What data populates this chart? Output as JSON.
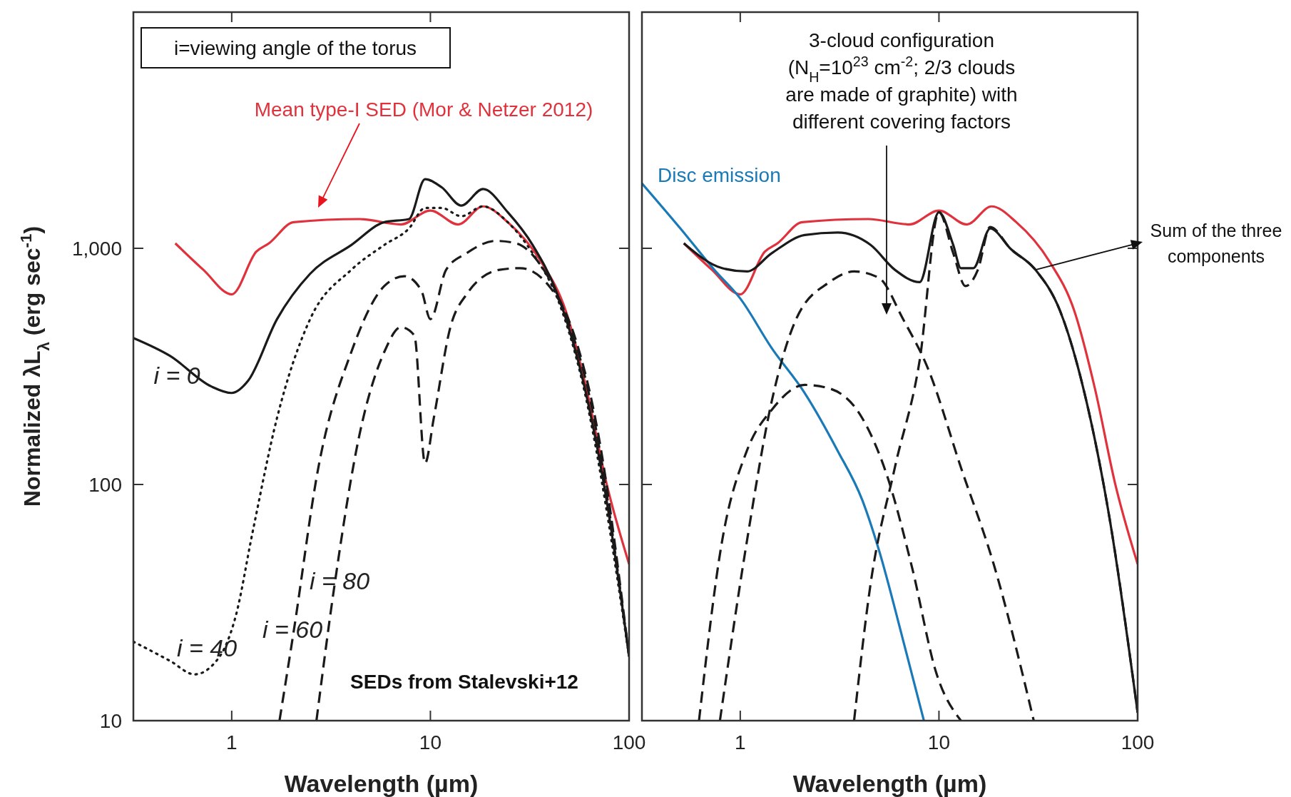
{
  "chart_data": [
    {
      "type": "line",
      "xlabel": "Wavelength (µm)",
      "ylabel": "Normalized λL$_{λ}$ (erg sec$^{-1}$)",
      "log": "xy",
      "xlim": [
        0.32,
        100
      ],
      "ylim": [
        10,
        10000
      ],
      "xticks": [
        1,
        10,
        100
      ],
      "yticks": [
        10,
        100,
        {
          "value": 1000,
          "label": "1,000"
        }
      ],
      "grid": false,
      "marker": "none",
      "annotations": [
        "i=viewing angle of the torus",
        "Mean type-I SED (Mor & Netzer 2012)",
        "i = 0",
        "i = 40",
        "i = 60",
        "i = 80",
        "SEDs from Stalevski+12"
      ],
      "series": [
        {
          "color": "#e0323c",
          "line_style": "solid",
          "x": [
            0.52,
            0.72,
            1,
            1.33,
            1.54,
            2.05,
            4.4,
            7.1,
            10,
            13.8,
            18.4,
            24.5,
            36,
            48,
            61,
            77,
            100
          ],
          "values": [
            1050,
            811,
            638,
            968,
            1050,
            1290,
            1330,
            1262,
            1445,
            1262,
            1505,
            1290,
            879,
            543,
            254,
            101,
            46
          ]
        },
        {
          "color": "#1a1a1a",
          "line_style": "solid",
          "x": [
            0.32,
            0.49,
            0.79,
            1,
            1.21,
            1.69,
            2.48,
            4.0,
            5.86,
            7.8,
            9.4,
            11.4,
            14.3,
            18.4,
            24.5,
            32.7,
            43.6,
            58,
            77,
            100
          ],
          "values": [
            417,
            350,
            260,
            244,
            275,
            501,
            780,
            1033,
            1290,
            1330,
            1963,
            1812,
            1517,
            1782,
            1422,
            1033,
            638,
            286,
            86,
            18.7
          ]
        },
        {
          "color": "#1a1a1a",
          "line_style": "dotted",
          "x": [
            0.32,
            0.49,
            0.65,
            0.87,
            1.05,
            1.27,
            1.69,
            2.48,
            4.0,
            5.86,
            7.8,
            9.4,
            11.4,
            14.3,
            18.4,
            24.5,
            32.7,
            43.6,
            58,
            100
          ],
          "values": [
            21.6,
            17.9,
            15.7,
            18.7,
            27.9,
            62,
            191,
            501,
            811,
            1033,
            1213,
            1482,
            1482,
            1367,
            1505,
            1290,
            953,
            613,
            275,
            18.7
          ]
        },
        {
          "color": "#1a1a1a",
          "line_style": "dashed",
          "x": [
            1.74,
            2.05,
            2.73,
            4.0,
            5.86,
            7.4,
            9.0,
            10,
            12.0,
            15.2,
            21.3,
            27,
            36,
            48,
            64,
            100
          ],
          "values": [
            10,
            23.8,
            118,
            364,
            692,
            762,
            663,
            501,
            811,
            953,
            1075,
            1050,
            845,
            522,
            225,
            18.7
          ]
        },
        {
          "color": "#1a1a1a",
          "line_style": "dashed",
          "x": [
            2.67,
            3.3,
            4.4,
            5.86,
            7.1,
            8.3,
            9.4,
            10.4,
            12.6,
            15.2,
            22.3,
            28.3,
            39.6,
            53,
            70,
            100
          ],
          "values": [
            10,
            38,
            163,
            364,
            463,
            428,
            123,
            191,
            463,
            638,
            811,
            824,
            692,
            428,
            163,
            18.7
          ]
        }
      ]
    },
    {
      "type": "line",
      "xlabel": "Wavelength (µm)",
      "log": "xy",
      "xlim": [
        0.32,
        100
      ],
      "ylim": [
        10,
        10000
      ],
      "xticks": [
        1,
        10,
        100
      ],
      "yticks": [
        10,
        100,
        1000
      ],
      "tick_labels": "x",
      "grid": false,
      "marker": "none",
      "annotations": [
        "3-cloud configuration\n(N$_{H}$=10$^{23}$ cm$^{-2}$; 2/3 clouds\nare made of graphite) with\ndifferent covering factors",
        {
          "text": "Sum of the three\ncomponents",
          "x": 30.6,
          "y": 811
        }
      ],
      "series": [
        {
          "color": "#e0323c",
          "line_style": "solid",
          "x": [
            0.52,
            0.72,
            1,
            1.33,
            1.54,
            2.05,
            4.4,
            7.1,
            10,
            13.8,
            18.4,
            24.5,
            36,
            48,
            61,
            77,
            100
          ],
          "values": [
            1050,
            811,
            638,
            968,
            1050,
            1290,
            1330,
            1262,
            1445,
            1262,
            1505,
            1290,
            879,
            543,
            254,
            101,
            46
          ]
        },
        {
          "name": "Disc emission",
          "color": "#1a7ab8",
          "line_style": "solid",
          "x": [
            0.32,
            0.5,
            0.74,
            1,
            1.44,
            2.11,
            3.09,
            4.11,
            4.98,
            6.6,
            8.4
          ],
          "values": [
            1884,
            1213,
            811,
            613,
            378,
            244,
            139,
            86,
            53,
            21.9,
            10
          ]
        },
        {
          "color": "#1a1a1a",
          "line_style": "solid",
          "x": [
            0.52,
            0.81,
            1.08,
            1.44,
            2.11,
            3.09,
            4.53,
            6.0,
            8.0,
            10,
            11.8,
            12.9,
            14.9,
            18.1,
            23,
            30.6,
            40.7,
            54,
            72,
            100
          ],
          "values": [
            1050,
            824,
            798,
            953,
            1138,
            1166,
            1033,
            811,
            719,
            1422,
            1033,
            824,
            824,
            1213,
            993,
            811,
            543,
            244,
            73,
            10.8
          ]
        },
        {
          "color": "#1a1a1a",
          "line_style": "dashed",
          "x": [
            0.62,
            0.81,
            1.08,
            1.44,
            2.11,
            2.81,
            4.11,
            5.48,
            7.3,
            9.7,
            12.9
          ],
          "values": [
            10,
            57.5,
            139,
            207,
            264,
            255,
            191,
            109,
            45,
            15.9,
            10
          ]
        },
        {
          "color": "#1a1a1a",
          "line_style": "dashed",
          "x": [
            0.79,
            1.08,
            1.44,
            1.91,
            2.81,
            3.74,
            4.98,
            6.6,
            8.8,
            12.9,
            19,
            30
          ],
          "values": [
            10,
            57.5,
            225,
            501,
            719,
            798,
            750,
            501,
            310,
            118,
            45,
            10
          ]
        },
        {
          "color": "#1a1a1a",
          "line_style": "dashed",
          "x": [
            3.74,
            4.53,
            6.0,
            8.0,
            10,
            11.8,
            13.6,
            15.7,
            18.1,
            23,
            30.6,
            40.7,
            54,
            72,
            100
          ],
          "values": [
            10,
            38,
            118,
            336,
            1422,
            953,
            692,
            811,
            1232,
            993,
            811,
            543,
            244,
            73,
            10.8
          ]
        }
      ]
    }
  ]
}
